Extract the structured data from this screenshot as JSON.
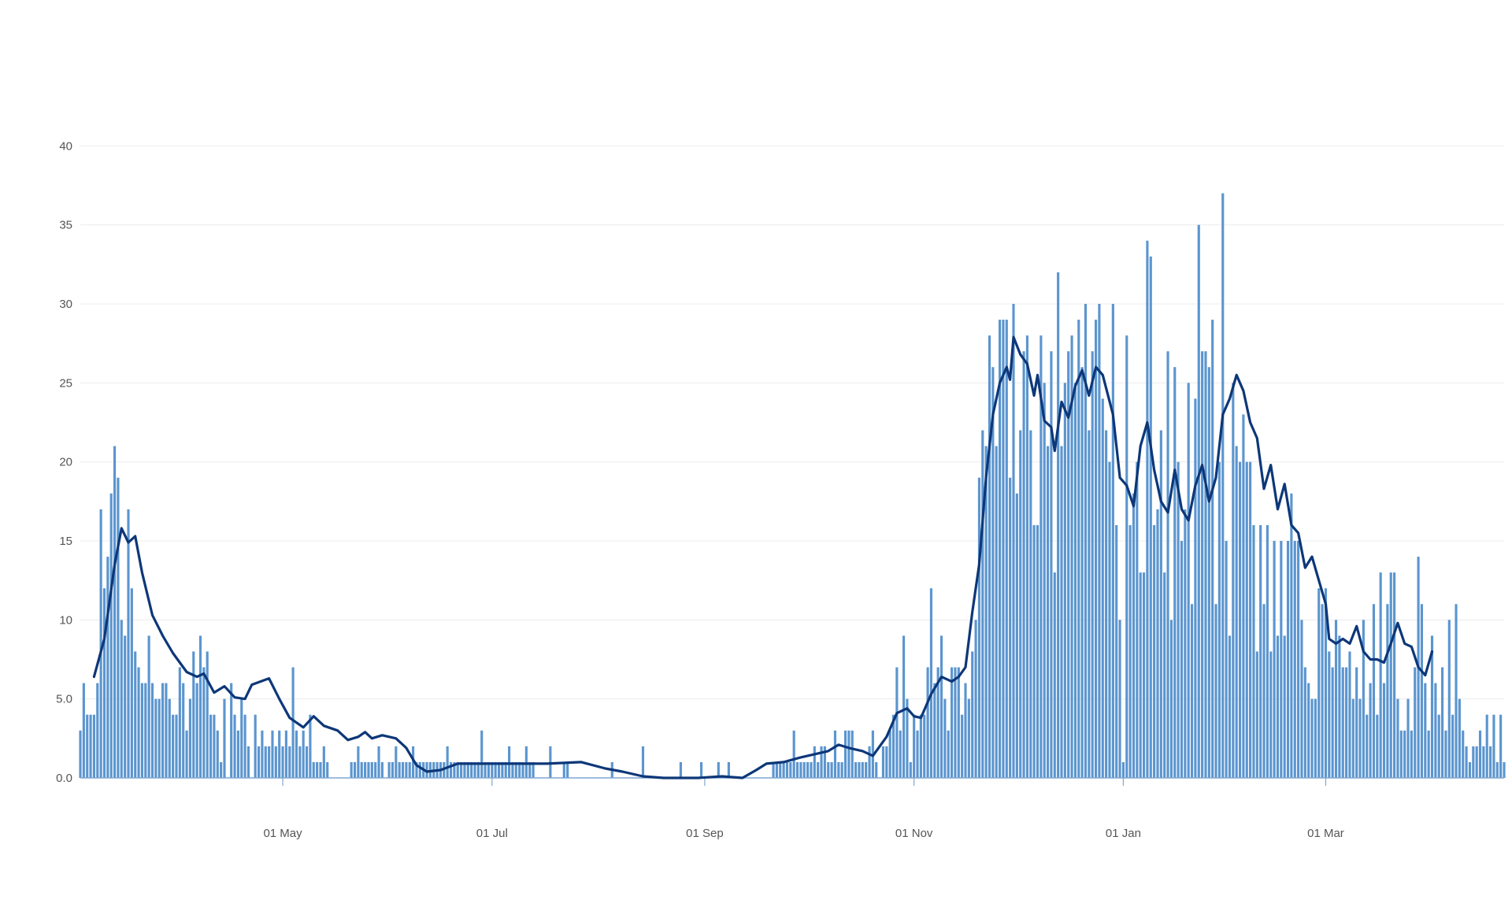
{
  "chart_data": {
    "type": "bar",
    "title": "",
    "xlabel": "",
    "ylabel": "",
    "ylim": [
      0,
      44
    ],
    "xlim": [
      "2020-03-03",
      "2021-04-22"
    ],
    "grid": true,
    "legend": "none",
    "colors": {
      "bars": "#5b95cf",
      "average_line": "#0d3778",
      "grid": "#ececec",
      "axis": "#7fa7d2",
      "tick_text": "#555555"
    },
    "y_ticks": [
      {
        "value": 0,
        "label": "0.0"
      },
      {
        "value": 5,
        "label": "5.0"
      },
      {
        "value": 10,
        "label": "10"
      },
      {
        "value": 15,
        "label": "15"
      },
      {
        "value": 20,
        "label": "20"
      },
      {
        "value": 25,
        "label": "25"
      },
      {
        "value": 30,
        "label": "30"
      },
      {
        "value": 35,
        "label": "35"
      },
      {
        "value": 40,
        "label": "40"
      }
    ],
    "x_ticks": [
      {
        "date": "2020-05-01",
        "label": "01 May"
      },
      {
        "date": "2020-07-01",
        "label": "01 Jul"
      },
      {
        "date": "2020-09-01",
        "label": "01 Sep"
      },
      {
        "date": "2020-11-01",
        "label": "01 Nov"
      },
      {
        "date": "2021-01-01",
        "label": "01 Jan"
      },
      {
        "date": "2021-03-01",
        "label": "01 Mar"
      }
    ],
    "series": [
      {
        "kind": "bar",
        "start_date": "2020-03-03",
        "values": [
          3,
          6,
          4,
          4,
          4,
          6,
          17,
          12,
          14,
          18,
          21,
          19,
          10,
          9,
          17,
          12,
          8,
          7,
          6,
          6,
          9,
          6,
          5,
          5,
          6,
          6,
          5,
          4,
          4,
          7,
          6,
          3,
          5,
          8,
          6,
          9,
          7,
          8,
          4,
          4,
          3,
          1,
          5,
          0,
          6,
          4,
          3,
          5,
          4,
          2,
          0,
          4,
          2,
          3,
          2,
          2,
          3,
          2,
          3,
          2,
          3,
          2,
          7,
          3,
          2,
          3,
          2,
          4,
          1,
          1,
          1,
          2,
          1,
          0,
          0,
          0,
          0,
          0,
          0,
          1,
          1,
          2,
          1,
          1,
          1,
          1,
          1,
          2,
          1,
          0,
          1,
          1,
          2,
          1,
          1,
          1,
          1,
          2,
          1,
          1,
          1,
          1,
          1,
          1,
          1,
          1,
          1,
          2,
          1,
          1,
          1,
          1,
          1,
          1,
          1,
          1,
          1,
          3,
          1,
          1,
          1,
          1,
          1,
          1,
          1,
          2,
          1,
          1,
          1,
          1,
          2,
          1,
          1,
          0,
          0,
          0,
          0,
          2,
          0,
          0,
          0,
          1,
          1,
          0,
          0,
          0,
          0,
          0,
          0,
          0,
          0,
          0,
          0,
          0,
          0,
          1,
          0,
          0,
          0,
          0,
          0,
          0,
          0,
          0,
          2,
          0,
          0,
          0,
          0,
          0,
          0,
          0,
          0,
          0,
          0,
          1,
          0,
          0,
          0,
          0,
          0,
          1,
          0,
          0,
          0,
          0,
          1,
          0,
          0,
          1,
          0,
          0,
          0,
          0,
          0,
          0,
          0,
          0,
          0,
          0,
          0,
          0,
          1,
          1,
          1,
          1,
          1,
          1,
          3,
          1,
          1,
          1,
          1,
          1,
          2,
          1,
          2,
          2,
          1,
          1,
          3,
          1,
          1,
          3,
          3,
          3,
          1,
          1,
          1,
          1,
          2,
          3,
          1,
          0,
          2,
          2,
          3,
          4,
          7,
          3,
          9,
          5,
          1,
          4,
          3,
          4,
          4,
          7,
          12,
          6,
          7,
          9,
          5,
          3,
          7,
          7,
          7,
          4,
          6,
          5,
          8,
          10,
          19,
          22,
          21,
          28,
          26,
          21,
          29,
          29,
          29,
          19,
          30,
          18,
          22,
          27,
          28,
          22,
          16,
          16,
          28,
          25,
          21,
          27,
          13,
          32,
          21,
          25,
          27,
          28,
          25,
          29,
          26,
          30,
          22,
          27,
          29,
          30,
          24,
          22,
          20,
          30,
          16,
          10,
          1,
          28,
          16,
          18,
          20,
          13,
          13,
          34,
          33,
          16,
          17,
          22,
          13,
          27,
          10,
          26,
          20,
          15,
          17,
          25,
          11,
          24,
          35,
          27,
          27,
          26,
          29,
          11,
          20,
          37,
          15,
          9,
          25,
          21,
          20,
          23,
          20,
          20,
          16,
          8,
          16,
          11,
          16,
          8,
          15,
          9,
          15,
          9,
          15,
          18,
          15,
          15,
          10,
          7,
          6,
          5,
          5,
          12,
          11,
          12,
          8,
          7,
          10,
          9,
          7,
          7,
          8,
          5,
          7,
          5,
          10,
          4,
          6,
          11,
          4,
          13,
          6,
          11,
          13,
          13,
          5,
          3,
          3,
          5,
          3,
          7,
          14,
          11,
          6,
          3,
          9,
          6,
          4,
          7,
          3,
          10,
          4,
          11,
          5,
          3,
          2,
          1,
          2,
          2,
          3,
          2,
          4,
          2,
          4,
          1,
          4,
          1,
          4,
          1,
          1,
          1,
          0,
          0,
          0,
          0,
          0,
          1,
          1,
          1,
          1,
          2,
          0,
          1,
          2,
          2,
          0,
          0,
          0,
          1,
          0,
          1
        ]
      },
      {
        "kind": "line",
        "name_hint": "7-day average",
        "anchors": [
          [
            "2020-03-07",
            6.4
          ],
          [
            "2020-03-10",
            8.8
          ],
          [
            "2020-03-13",
            13.5
          ],
          [
            "2020-03-15",
            15.8
          ],
          [
            "2020-03-17",
            14.9
          ],
          [
            "2020-03-19",
            15.3
          ],
          [
            "2020-03-21",
            13.0
          ],
          [
            "2020-03-24",
            10.3
          ],
          [
            "2020-03-27",
            9.0
          ],
          [
            "2020-03-30",
            7.9
          ],
          [
            "2020-04-03",
            6.7
          ],
          [
            "2020-04-06",
            6.4
          ],
          [
            "2020-04-08",
            6.6
          ],
          [
            "2020-04-11",
            5.4
          ],
          [
            "2020-04-14",
            5.8
          ],
          [
            "2020-04-17",
            5.1
          ],
          [
            "2020-04-20",
            5.0
          ],
          [
            "2020-04-22",
            5.9
          ],
          [
            "2020-04-27",
            6.3
          ],
          [
            "2020-04-30",
            5.0
          ],
          [
            "2020-05-03",
            3.8
          ],
          [
            "2020-05-07",
            3.2
          ],
          [
            "2020-05-10",
            3.9
          ],
          [
            "2020-05-13",
            3.3
          ],
          [
            "2020-05-17",
            3.0
          ],
          [
            "2020-05-20",
            2.4
          ],
          [
            "2020-05-23",
            2.6
          ],
          [
            "2020-05-25",
            2.9
          ],
          [
            "2020-05-27",
            2.5
          ],
          [
            "2020-05-30",
            2.7
          ],
          [
            "2020-06-03",
            2.5
          ],
          [
            "2020-06-06",
            1.9
          ],
          [
            "2020-06-09",
            0.8
          ],
          [
            "2020-06-12",
            0.4
          ],
          [
            "2020-06-16",
            0.5
          ],
          [
            "2020-06-21",
            0.9
          ],
          [
            "2020-06-26",
            0.9
          ],
          [
            "2020-07-01",
            0.9
          ],
          [
            "2020-07-09",
            0.9
          ],
          [
            "2020-07-17",
            0.9
          ],
          [
            "2020-07-27",
            1.0
          ],
          [
            "2020-08-03",
            0.6
          ],
          [
            "2020-08-08",
            0.4
          ],
          [
            "2020-08-14",
            0.1
          ],
          [
            "2020-08-20",
            0.0
          ],
          [
            "2020-08-30",
            0.0
          ],
          [
            "2020-09-06",
            0.1
          ],
          [
            "2020-09-12",
            0.0
          ],
          [
            "2020-09-16",
            0.5
          ],
          [
            "2020-09-19",
            0.9
          ],
          [
            "2020-09-24",
            1.0
          ],
          [
            "2020-09-29",
            1.3
          ],
          [
            "2020-10-03",
            1.5
          ],
          [
            "2020-10-07",
            1.7
          ],
          [
            "2020-10-10",
            2.1
          ],
          [
            "2020-10-13",
            1.9
          ],
          [
            "2020-10-17",
            1.7
          ],
          [
            "2020-10-20",
            1.4
          ],
          [
            "2020-10-24",
            2.6
          ],
          [
            "2020-10-27",
            4.1
          ],
          [
            "2020-10-30",
            4.4
          ],
          [
            "2020-11-01",
            3.9
          ],
          [
            "2020-11-03",
            3.8
          ],
          [
            "2020-11-06",
            5.3
          ],
          [
            "2020-11-09",
            6.4
          ],
          [
            "2020-11-12",
            6.1
          ],
          [
            "2020-11-14",
            6.4
          ],
          [
            "2020-11-16",
            7.0
          ],
          [
            "2020-11-18",
            10.5
          ],
          [
            "2020-11-20",
            13.5
          ],
          [
            "2020-11-22",
            19.0
          ],
          [
            "2020-11-24",
            23.0
          ],
          [
            "2020-11-26",
            25.0
          ],
          [
            "2020-11-28",
            26.0
          ],
          [
            "2020-11-29",
            25.2
          ],
          [
            "2020-11-30",
            27.9
          ],
          [
            "2020-12-02",
            26.8
          ],
          [
            "2020-12-04",
            26.2
          ],
          [
            "2020-12-06",
            24.2
          ],
          [
            "2020-12-07",
            25.5
          ],
          [
            "2020-12-09",
            22.6
          ],
          [
            "2020-12-11",
            22.2
          ],
          [
            "2020-12-12",
            20.7
          ],
          [
            "2020-12-14",
            23.8
          ],
          [
            "2020-12-16",
            22.8
          ],
          [
            "2020-12-18",
            24.8
          ],
          [
            "2020-12-20",
            25.8
          ],
          [
            "2020-12-22",
            24.2
          ],
          [
            "2020-12-24",
            26.0
          ],
          [
            "2020-12-26",
            25.5
          ],
          [
            "2020-12-29",
            23.0
          ],
          [
            "2020-12-31",
            19.0
          ],
          [
            "2021-01-02",
            18.5
          ],
          [
            "2021-01-04",
            17.2
          ],
          [
            "2021-01-06",
            21.0
          ],
          [
            "2021-01-08",
            22.5
          ],
          [
            "2021-01-10",
            19.5
          ],
          [
            "2021-01-12",
            17.5
          ],
          [
            "2021-01-14",
            16.8
          ],
          [
            "2021-01-16",
            19.5
          ],
          [
            "2021-01-18",
            17.0
          ],
          [
            "2021-01-20",
            16.3
          ],
          [
            "2021-01-22",
            18.5
          ],
          [
            "2021-01-24",
            19.8
          ],
          [
            "2021-01-26",
            17.5
          ],
          [
            "2021-01-28",
            19.0
          ],
          [
            "2021-01-30",
            23.0
          ],
          [
            "2021-02-01",
            24.0
          ],
          [
            "2021-02-03",
            25.5
          ],
          [
            "2021-02-05",
            24.5
          ],
          [
            "2021-02-07",
            22.5
          ],
          [
            "2021-02-09",
            21.5
          ],
          [
            "2021-02-11",
            18.3
          ],
          [
            "2021-02-13",
            19.8
          ],
          [
            "2021-02-15",
            17.0
          ],
          [
            "2021-02-17",
            18.6
          ],
          [
            "2021-02-19",
            16.0
          ],
          [
            "2021-02-21",
            15.5
          ],
          [
            "2021-02-23",
            13.3
          ],
          [
            "2021-02-25",
            14.0
          ],
          [
            "2021-02-27",
            12.5
          ],
          [
            "2021-02-29",
            11.0
          ],
          [
            "2021-03-02",
            8.8
          ],
          [
            "2021-03-04",
            8.5
          ],
          [
            "2021-03-06",
            8.8
          ],
          [
            "2021-03-08",
            8.5
          ],
          [
            "2021-03-10",
            9.6
          ],
          [
            "2021-03-12",
            8.0
          ],
          [
            "2021-03-14",
            7.5
          ],
          [
            "2021-03-16",
            7.5
          ],
          [
            "2021-03-18",
            7.3
          ],
          [
            "2021-03-20",
            8.5
          ],
          [
            "2021-03-22",
            9.8
          ],
          [
            "2021-03-24",
            8.5
          ],
          [
            "2021-03-26",
            8.3
          ],
          [
            "2021-03-28",
            7.0
          ],
          [
            "2021-03-30",
            6.5
          ],
          [
            "2021-04-01",
            8.0
          ]
        ]
      }
    ]
  }
}
